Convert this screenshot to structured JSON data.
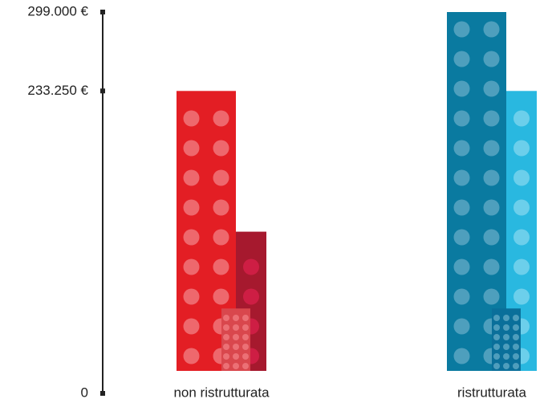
{
  "chart_data": {
    "type": "bar",
    "categories": [
      "non ristrutturata",
      "ristrutturata"
    ],
    "series": [
      {
        "colors": [
          "#e31e24",
          "#0a7aa0"
        ],
        "values": [
          233250,
          299000
        ]
      },
      {
        "colors": [
          "#a6192e",
          "#29b8e0"
        ],
        "values": [
          116000,
          233250
        ]
      },
      {
        "colors": [
          "#d9474d",
          "#0a6f9a"
        ],
        "values": [
          52000,
          52000
        ]
      }
    ],
    "ylim": [
      0,
      299000
    ],
    "yticks": [
      0,
      {
        "value": 233250,
        "label": "233.250 €"
      },
      {
        "value": 299000,
        "label": "299.000 €"
      }
    ]
  }
}
